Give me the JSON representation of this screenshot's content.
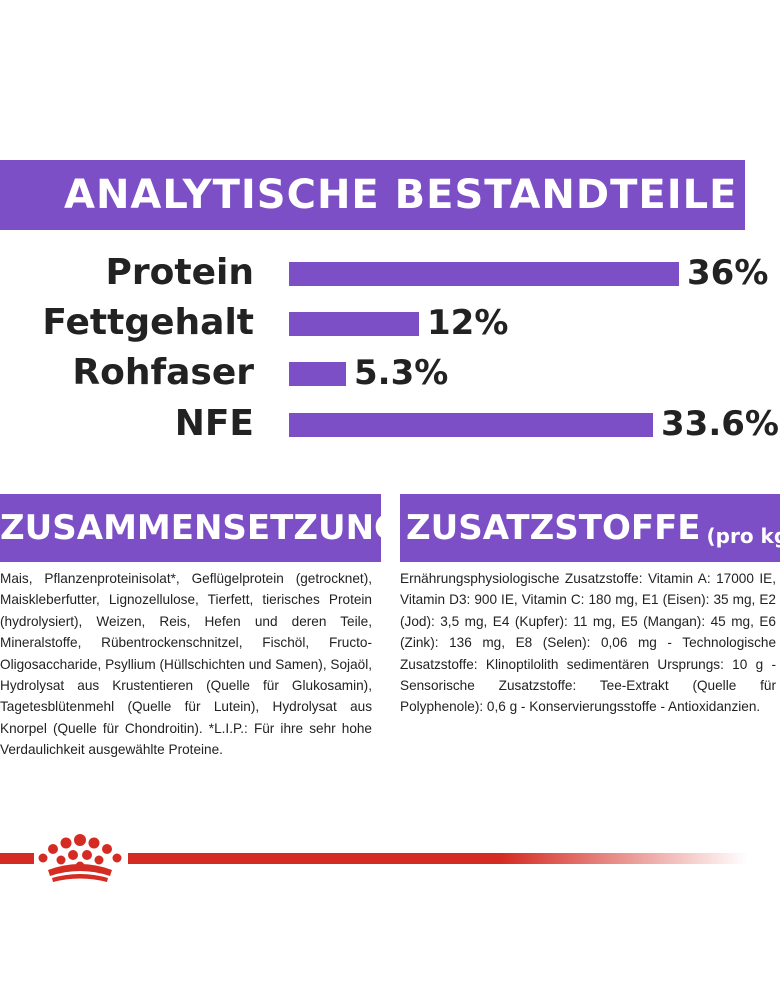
{
  "analytics": {
    "title": "ANALYTISCHE BESTANDTEILE",
    "rows": [
      {
        "label": "Protein",
        "value_text": "36%",
        "value": 36
      },
      {
        "label": "Fettgehalt",
        "value_text": "12%",
        "value": 12
      },
      {
        "label": "Rohfaser",
        "value_text": "5.3%",
        "value": 5.3
      },
      {
        "label": "NFE",
        "value_text": "33.6%",
        "value": 33.6
      }
    ]
  },
  "composition": {
    "title": "ZUSAMMENSETZUNG",
    "text": "Mais, Pflanzenproteinisolat*, Geflügelprotein (getrocknet), Maiskleberfutter, Lignozellulose, Tierfett, tierisches Protein (hydrolysiert), Weizen, Reis, Hefen und deren Teile, Mineralstoffe, Rübentrockenschnitzel, Fischöl, Fructo-Oligosaccharide, Psyllium (Hüllschichten und Samen), Sojaöl, Hydrolysat aus Krustentieren (Quelle für Glukosamin), Tagetesblütenmehl (Quelle für Lutein), Hydrolysat aus Knorpel (Quelle für Chondroitin). *L.I.P.: Für ihre sehr hohe Verdaulichkeit ausgewählte Proteine."
  },
  "additives": {
    "title": "ZUSATZSTOFFE",
    "title_suffix": "(pro kg)",
    "text": "Ernährungsphysiologische Zusatzstoffe: Vitamin A: 17000 IE, Vitamin D3: 900 IE, Vitamin C: 180 mg, E1 (Eisen): 35 mg, E2 (Jod): 3,5 mg, E4 (Kupfer): 11 mg, E5 (Mangan): 45 mg, E6 (Zink): 136 mg, E8 (Selen): 0,06 mg - Technologische Zusatzstoffe: Klinoptilolith sedimentären Ursprungs: 10 g - Sensorische Zusatzstoffe: Tee-Extrakt (Quelle für Polyphenole): 0,6 g - Konservierungsstoffe - Antioxidanzien."
  },
  "colors": {
    "accent_purple": "#7c4fc6",
    "brand_red": "#d42b22"
  },
  "footer": {
    "logo_icon": "royal-canin-crown-icon"
  }
}
